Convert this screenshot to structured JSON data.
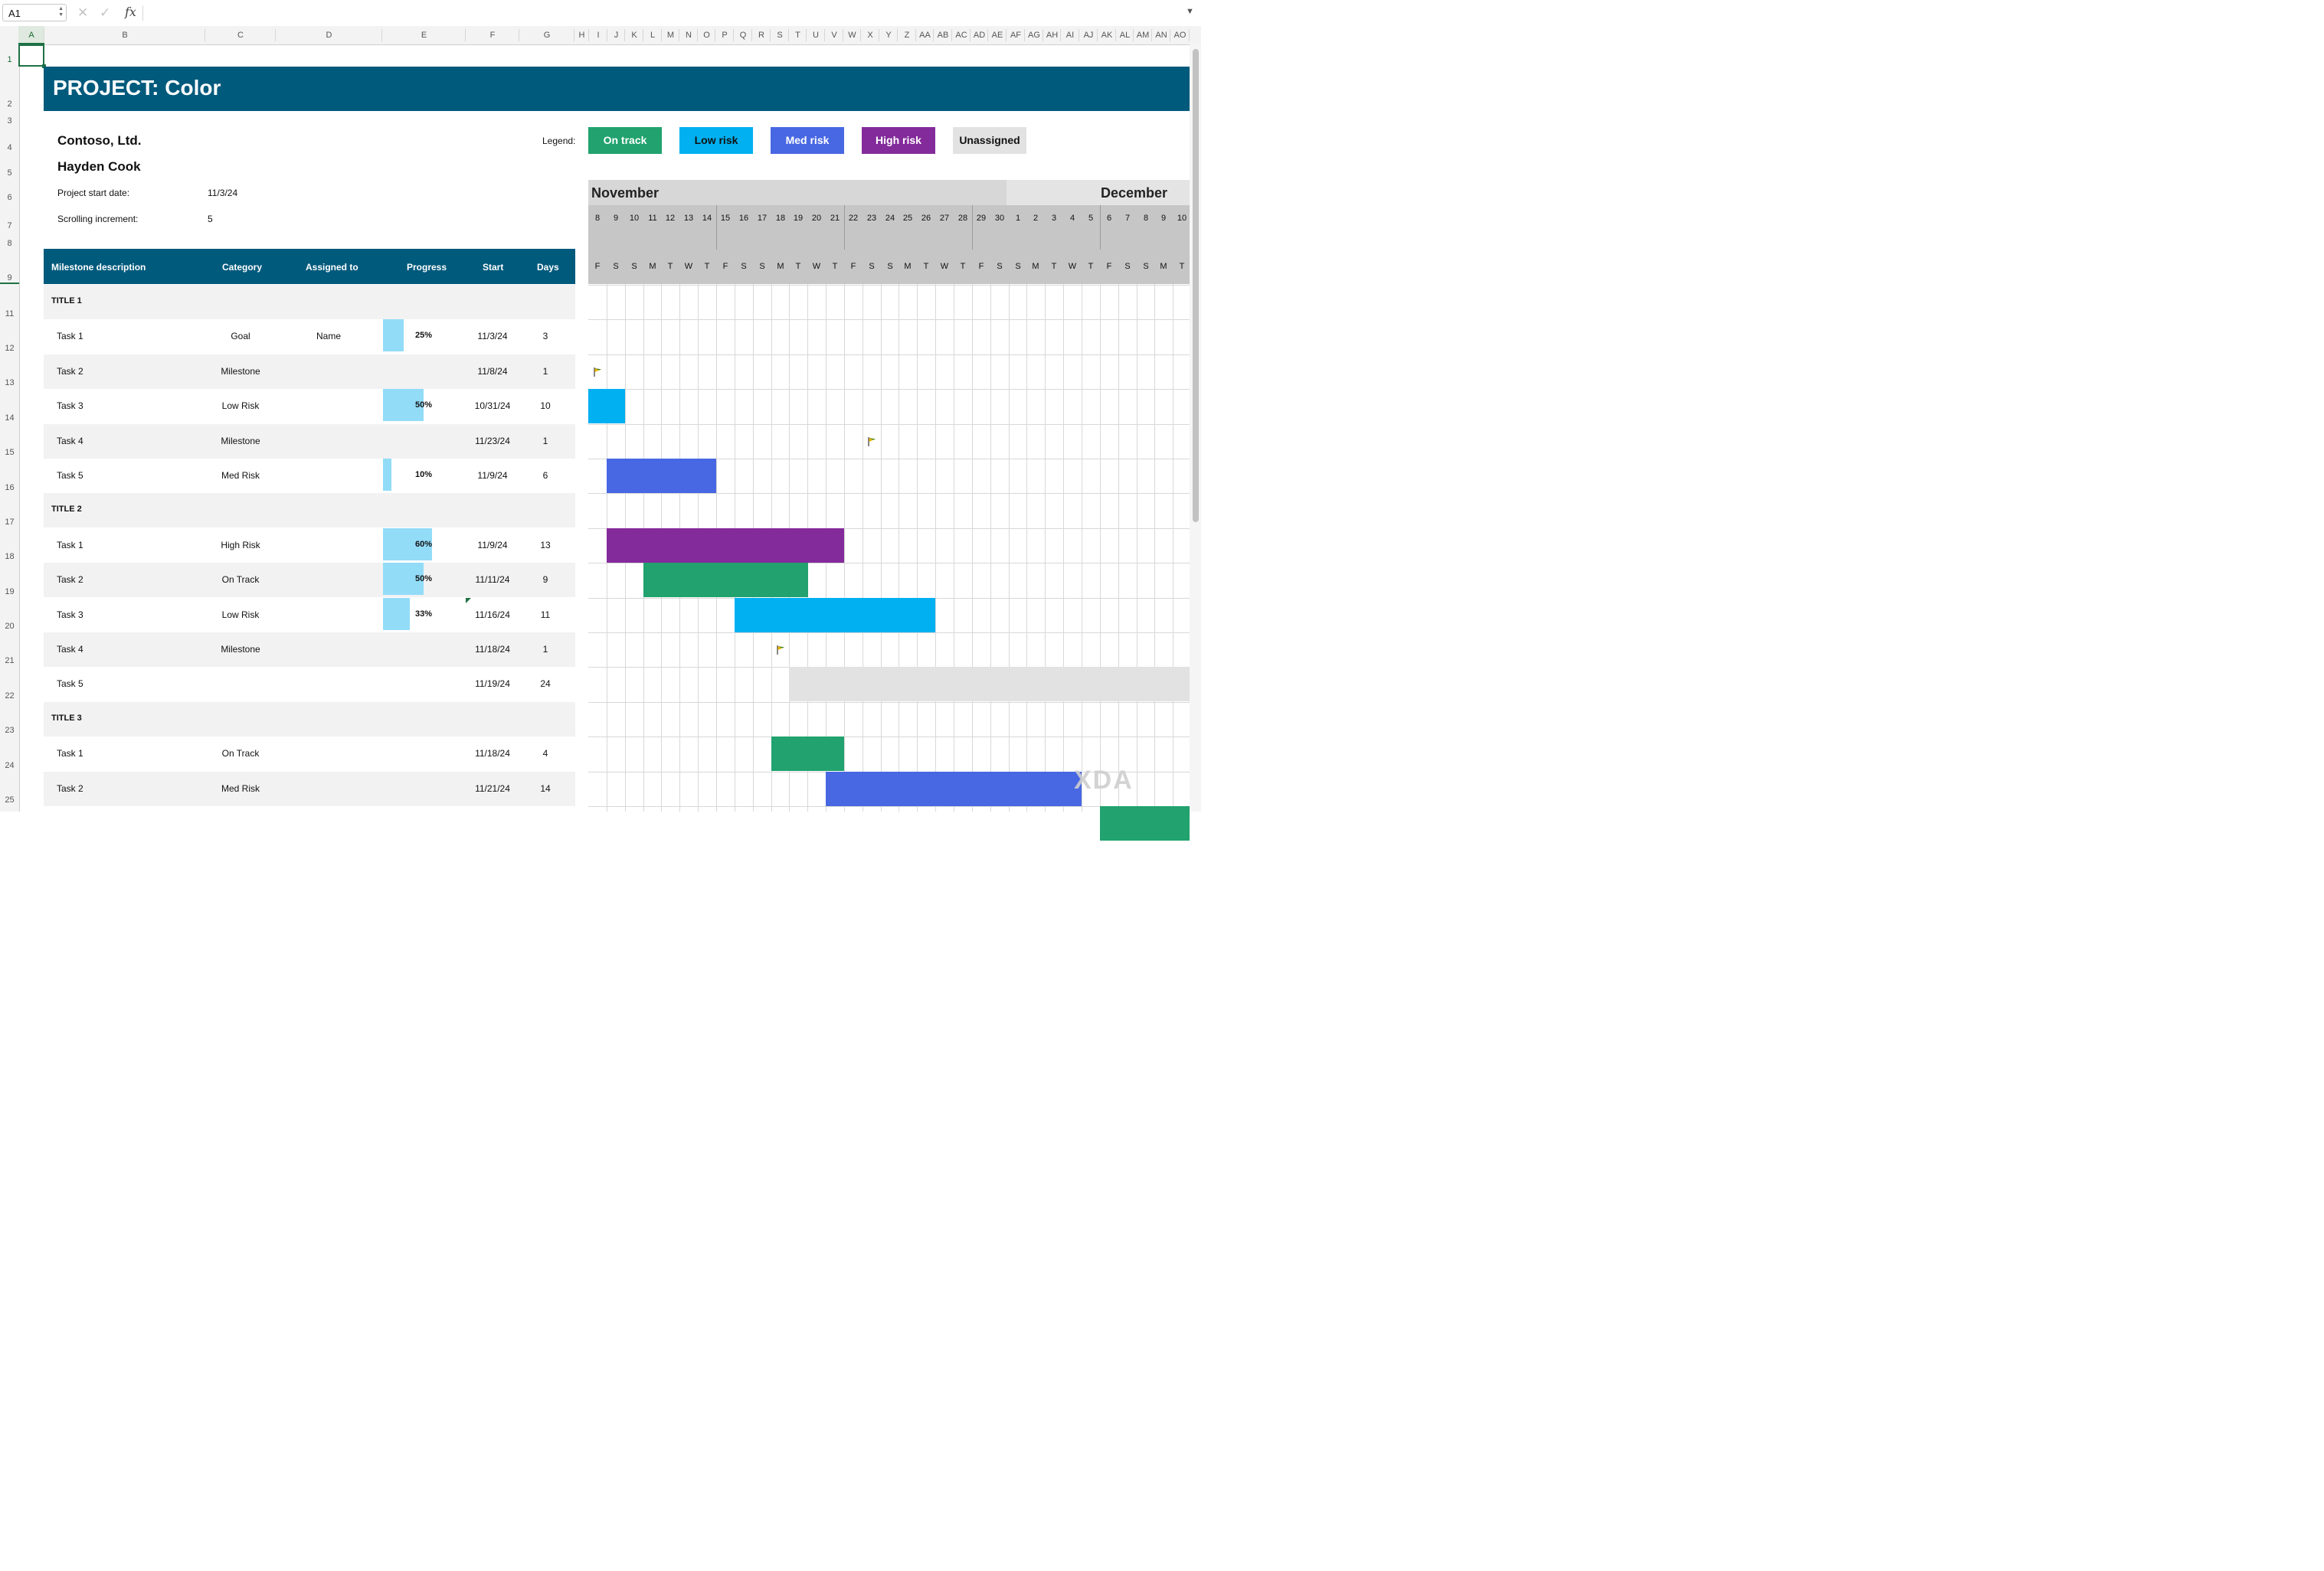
{
  "formula_bar": {
    "name_box": "A1",
    "fx_label": "fx",
    "formula": ""
  },
  "columns": [
    "A",
    "B",
    "C",
    "D",
    "E",
    "F",
    "G",
    "H",
    "I",
    "J",
    "K",
    "L",
    "M",
    "N",
    "O",
    "P",
    "Q",
    "R",
    "S",
    "T",
    "U",
    "V",
    "W",
    "X",
    "Y",
    "Z",
    "AA",
    "AB",
    "AC",
    "AD",
    "AE",
    "AF",
    "AG",
    "AH",
    "AI",
    "AJ",
    "AK",
    "AL",
    "AM",
    "AN",
    "AO"
  ],
  "rows": [
    "1",
    "2",
    "3",
    "4",
    "5",
    "6",
    "7",
    "8",
    "9",
    "11",
    "12",
    "13",
    "14",
    "15",
    "16",
    "17",
    "18",
    "19",
    "20",
    "21",
    "22",
    "23",
    "24",
    "25"
  ],
  "project": {
    "title": "PROJECT: Color",
    "company": "Contoso, Ltd.",
    "manager": "Hayden Cook",
    "start_label": "Project start date:",
    "start_value": "11/3/24",
    "increment_label": "Scrolling increment:",
    "increment_value": "5"
  },
  "legend": {
    "label": "Legend:",
    "items": [
      {
        "label": "On track",
        "color": "#21a26e",
        "text_color": "#ffffff"
      },
      {
        "label": "Low risk",
        "color": "#00b0f0",
        "text_color": "#111111"
      },
      {
        "label": "Med risk",
        "color": "#4867e3",
        "text_color": "#ffffff"
      },
      {
        "label": "High risk",
        "color": "#842b9b",
        "text_color": "#ffffff"
      },
      {
        "label": "Unassigned",
        "color": "#e2e2e2",
        "text_color": "#111111"
      }
    ]
  },
  "table": {
    "headers": {
      "milestone": "Milestone description",
      "category": "Category",
      "assigned": "Assigned to",
      "progress": "Progress",
      "start": "Start",
      "days": "Days"
    },
    "rows": [
      {
        "type": "title",
        "label": "TITLE 1"
      },
      {
        "type": "task",
        "label": "Task 1",
        "category": "Goal",
        "assigned": "Name",
        "progress": "25%",
        "progress_value": 0.25,
        "start": "11/3/24",
        "days": "3"
      },
      {
        "type": "task",
        "label": "Task 2",
        "category": "Milestone",
        "assigned": "",
        "progress": "",
        "progress_value": 0,
        "start": "11/8/24",
        "days": "1"
      },
      {
        "type": "task",
        "label": "Task 3",
        "category": "Low Risk",
        "assigned": "",
        "progress": "50%",
        "progress_value": 0.5,
        "start": "10/31/24",
        "days": "10"
      },
      {
        "type": "task",
        "label": "Task 4",
        "category": "Milestone",
        "assigned": "",
        "progress": "",
        "progress_value": 0,
        "start": "11/23/24",
        "days": "1"
      },
      {
        "type": "task",
        "label": "Task 5",
        "category": "Med Risk",
        "assigned": "",
        "progress": "10%",
        "progress_value": 0.1,
        "start": "11/9/24",
        "days": "6"
      },
      {
        "type": "title",
        "label": "TITLE 2"
      },
      {
        "type": "task",
        "label": "Task 1",
        "category": "High Risk",
        "assigned": "",
        "progress": "60%",
        "progress_value": 0.6,
        "start": "11/9/24",
        "days": "13"
      },
      {
        "type": "task",
        "label": "Task 2",
        "category": "On Track",
        "assigned": "",
        "progress": "50%",
        "progress_value": 0.5,
        "start": "11/11/24",
        "days": "9"
      },
      {
        "type": "task",
        "label": "Task 3",
        "category": "Low Risk",
        "assigned": "",
        "progress": "33%",
        "progress_value": 0.33,
        "start": "11/16/24",
        "days": "11"
      },
      {
        "type": "task",
        "label": "Task 4",
        "category": "Milestone",
        "assigned": "",
        "progress": "",
        "progress_value": 0,
        "start": "11/18/24",
        "days": "1"
      },
      {
        "type": "task",
        "label": "Task 5",
        "category": "",
        "assigned": "",
        "progress": "",
        "progress_value": 0,
        "start": "11/19/24",
        "days": "24"
      },
      {
        "type": "title",
        "label": "TITLE 3"
      },
      {
        "type": "task",
        "label": "Task 1",
        "category": "On Track",
        "assigned": "",
        "progress": "",
        "progress_value": 0,
        "start": "11/18/24",
        "days": "4"
      },
      {
        "type": "task",
        "label": "Task 2",
        "category": "Med Risk",
        "assigned": "",
        "progress": "",
        "progress_value": 0,
        "start": "11/21/24",
        "days": "14"
      }
    ]
  },
  "timeline": {
    "months": [
      "November",
      "December"
    ],
    "days": [
      "8",
      "9",
      "10",
      "11",
      "12",
      "13",
      "14",
      "15",
      "16",
      "17",
      "18",
      "19",
      "20",
      "21",
      "22",
      "23",
      "24",
      "25",
      "26",
      "27",
      "28",
      "29",
      "30",
      "1",
      "2",
      "3",
      "4",
      "5",
      "6",
      "7",
      "8",
      "9",
      "10"
    ],
    "weekdays": [
      "F",
      "S",
      "S",
      "M",
      "T",
      "W",
      "T",
      "F",
      "S",
      "S",
      "M",
      "T",
      "W",
      "T",
      "F",
      "S",
      "S",
      "M",
      "T",
      "W",
      "T",
      "F",
      "S",
      "S",
      "M",
      "T",
      "W",
      "T",
      "F",
      "S",
      "S",
      "M",
      "T"
    ]
  },
  "colors": {
    "header": "#005a7c",
    "on_track": "#21a26e",
    "low_risk": "#00b0f0",
    "med_risk": "#4867e3",
    "high_risk": "#842b9b",
    "unassigned": "#e2e2e2",
    "progress": "#92dcf8"
  },
  "watermark": "XDA"
}
